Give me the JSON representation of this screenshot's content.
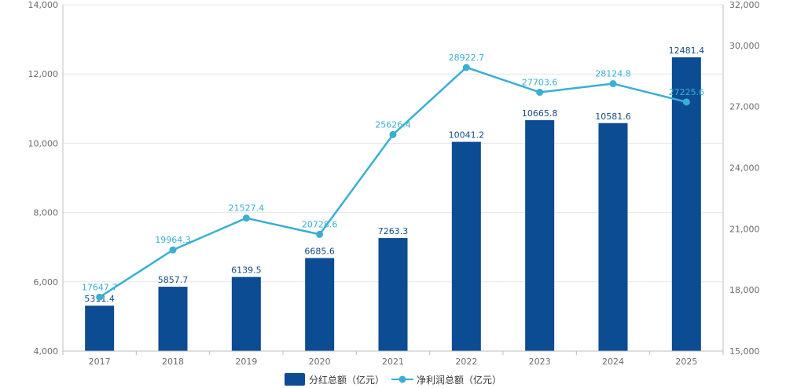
{
  "chart_data": {
    "type": "bar",
    "title": "",
    "categories": [
      "2017",
      "2018",
      "2019",
      "2020",
      "2021",
      "2022",
      "2023",
      "2024",
      "2025"
    ],
    "series": [
      {
        "name": "分红总额（亿元）",
        "type": "bar",
        "axis": "left",
        "color": "#0b4c93",
        "values": [
          5311.4,
          5857.7,
          6139.5,
          6685.6,
          7263.3,
          10041.2,
          10665.8,
          10581.6,
          12481.4
        ],
        "labels": [
          "5311.4",
          "5857.7",
          "6139.5",
          "6685.6",
          "7263.3",
          "10041.2",
          "10665.8",
          "10581.6",
          "12481.4"
        ]
      },
      {
        "name": "净利润总额（亿元）",
        "type": "line",
        "axis": "right",
        "color": "#3aafd3",
        "values": [
          17647.7,
          19964.3,
          21527.4,
          20728.6,
          25626.4,
          28922.7,
          27703.6,
          28124.8,
          27225.6
        ],
        "labels": [
          "17647.7",
          "19964.3",
          "21527.4",
          "20728.6",
          "25626.4",
          "28922.7",
          "27703.6",
          "28124.8",
          "27225.6"
        ]
      }
    ],
    "y_left": {
      "min": 4000,
      "max": 14000,
      "ticks": [
        "4,000",
        "6,000",
        "8,000",
        "10,000",
        "12,000",
        "14,000"
      ],
      "tick_values": [
        4000,
        6000,
        8000,
        10000,
        12000,
        14000
      ]
    },
    "y_right": {
      "min": 15000,
      "max": 32000,
      "ticks": [
        "15,000",
        "18,000",
        "21,000",
        "24,000",
        "27,000",
        "30,000",
        "32,000"
      ],
      "tick_values": [
        15000,
        18000,
        21000,
        24000,
        27000,
        30000,
        32000
      ]
    },
    "grid": true,
    "legend_position": "bottom-center",
    "colors": {
      "grid": "#e6e6e6",
      "axis": "#bdbdbd",
      "tick_text": "#6b6b6b"
    }
  }
}
